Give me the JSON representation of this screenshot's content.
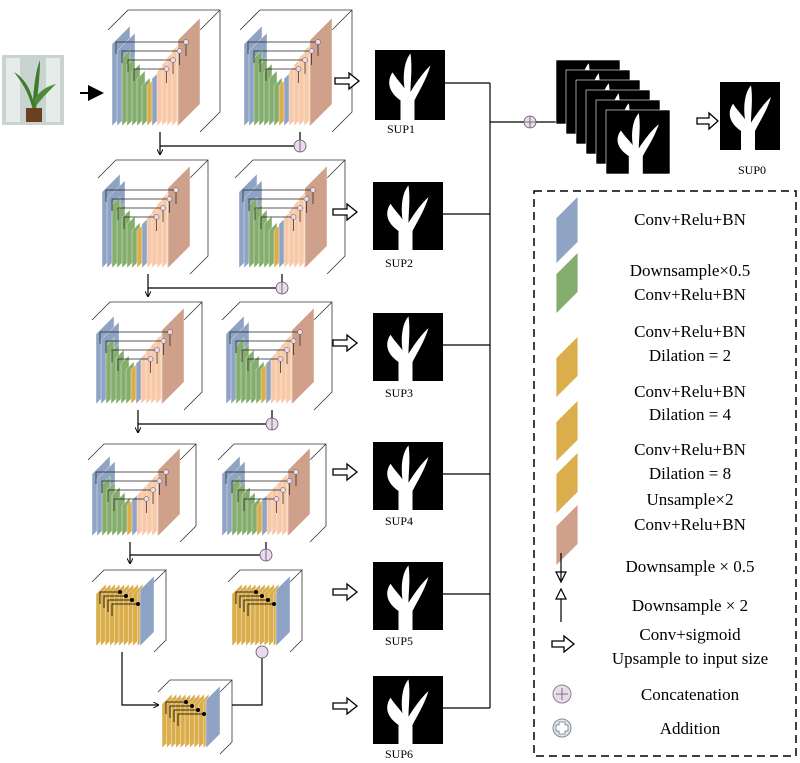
{
  "sup_labels": [
    "SUP1",
    "SUP2",
    "SUP3",
    "SUP4",
    "SUP5",
    "SUP6",
    "SUP0"
  ],
  "colors": {
    "conv": "#8fa3c4",
    "downsample_conv": "#84ad6e",
    "dilation": "#dbae4c",
    "upsample_conv": "#cfa18b",
    "upsample_light": "#f7c9a8",
    "concat_fill": "#ecd8f0",
    "addition_fill": "#dde8f5"
  },
  "legend": {
    "items": [
      {
        "icon": "blue-layer-icon",
        "lines": [
          "Conv+Relu+BN"
        ]
      },
      {
        "icon": "green-layer-icon",
        "lines": [
          "Downsample×0.5",
          "Conv+Relu+BN"
        ]
      },
      {
        "icon": "yellow-layer-icon",
        "lines": [
          "Conv+Relu+BN",
          "Dilation = 2"
        ]
      },
      {
        "icon": "yellow-layer-icon",
        "lines": [
          "Conv+Relu+BN",
          "Dilation = 4"
        ]
      },
      {
        "icon": "yellow-layer-icon",
        "lines": [
          "Conv+Relu+BN",
          "Dilation = 8"
        ]
      },
      {
        "icon": "peach-layer-icon",
        "lines": [
          "Unsample×2",
          "Conv+Relu+BN"
        ]
      },
      {
        "icon": "arrow-down-icon",
        "lines": [
          "Downsample × 0.5"
        ]
      },
      {
        "icon": "arrow-up-icon",
        "lines": [
          "Downsample × 2"
        ]
      },
      {
        "icon": "hollow-arrow-right-icon",
        "lines": [
          "Conv+sigmoid",
          "Upsample to input size"
        ]
      },
      {
        "icon": "concatenation-icon",
        "lines": [
          "Concatenation"
        ]
      },
      {
        "icon": "addition-icon",
        "lines": [
          "Addition"
        ]
      }
    ]
  }
}
